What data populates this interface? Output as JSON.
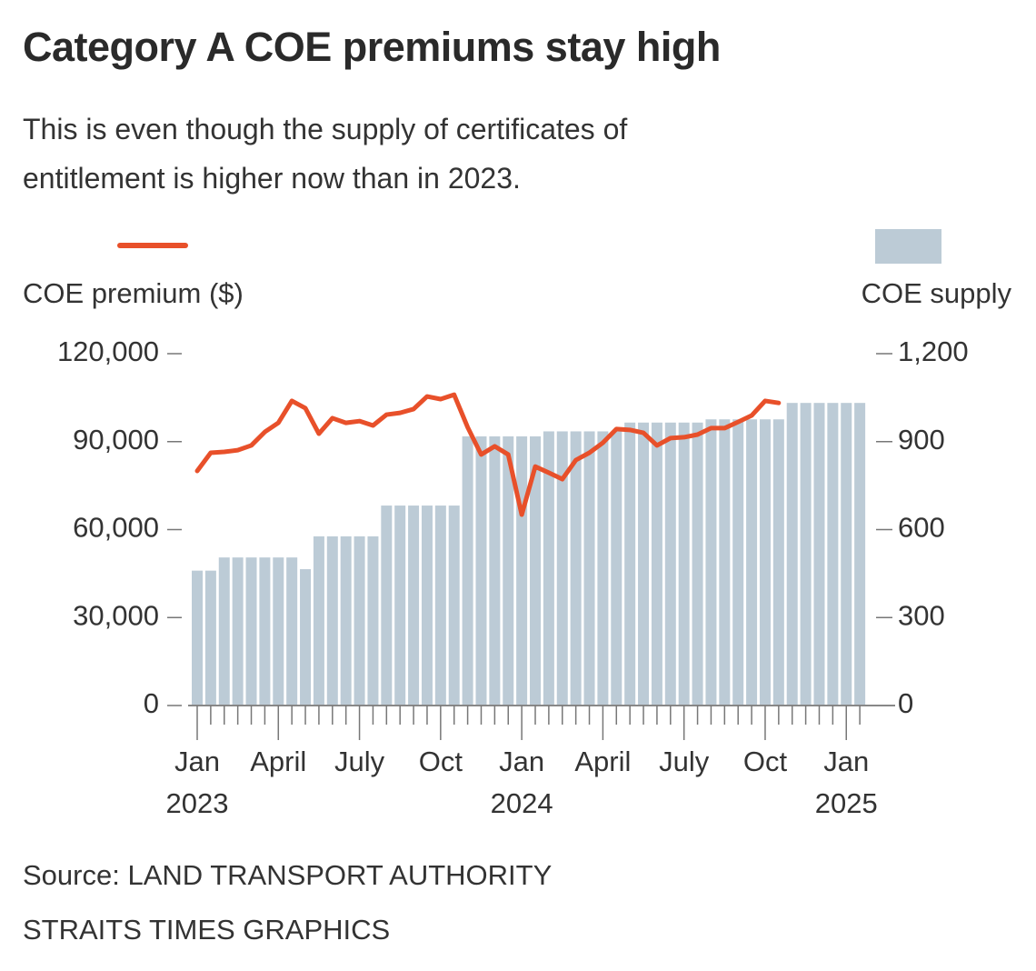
{
  "chart_data": {
    "type": "bar",
    "title": "Category A COE premiums stay high",
    "subtitle": "This is even though the supply of certificates of entitlement is higher now than in 2023.",
    "source": [
      "Source: LAND TRANSPORT AUTHORITY",
      "STRAITS TIMES GRAPHICS"
    ],
    "categories": [
      "Jan 2023",
      null,
      null,
      null,
      null,
      null,
      "April",
      null,
      null,
      null,
      null,
      null,
      "July",
      null,
      null,
      null,
      null,
      null,
      "Oct",
      null,
      null,
      null,
      null,
      null,
      "Jan 2024",
      null,
      null,
      null,
      null,
      null,
      "April",
      null,
      null,
      null,
      null,
      null,
      "July",
      null,
      null,
      null,
      null,
      null,
      "Oct",
      null,
      null,
      null,
      null,
      null,
      "Jan 2025",
      null
    ],
    "series": [
      {
        "name": "COE supply",
        "type": "bar",
        "axis": "y2",
        "color": "#bccbd6",
        "values": [
          460,
          460,
          505,
          505,
          505,
          505,
          505,
          505,
          465,
          577,
          577,
          577,
          577,
          577,
          682,
          682,
          682,
          682,
          682,
          682,
          918,
          918,
          918,
          918,
          918,
          918,
          935,
          935,
          935,
          935,
          935,
          935,
          965,
          965,
          965,
          965,
          965,
          965,
          976,
          976,
          976,
          976,
          976,
          976,
          1032,
          1032,
          1032,
          1032,
          1032,
          1032
        ]
      },
      {
        "name": "COE premium ($)",
        "type": "line",
        "axis": "y",
        "color": "#e8502a",
        "values": [
          80000,
          86200,
          86500,
          87100,
          88700,
          93300,
          96400,
          103900,
          101400,
          92700,
          98000,
          96400,
          97000,
          95500,
          99200,
          99800,
          101100,
          105400,
          104500,
          106000,
          94900,
          85600,
          88400,
          85600,
          65100,
          81500,
          79400,
          77200,
          83700,
          86200,
          89600,
          94300,
          94000,
          93000,
          88700,
          91200,
          91500,
          92400,
          94600,
          94600,
          96700,
          98900,
          103900,
          103200,
          null,
          null,
          null,
          null,
          null,
          null
        ]
      }
    ],
    "ylim": [
      0,
      120000
    ],
    "yticks": [
      0,
      {
        "value": 30000,
        "label": "30,000"
      },
      {
        "value": 60000,
        "label": "60,000"
      },
      {
        "value": 90000,
        "label": "90,000"
      },
      {
        "value": 120000,
        "label": "120,000"
      }
    ],
    "y2lim": [
      0,
      1200
    ],
    "y2ticks": [
      0,
      300,
      600,
      900,
      {
        "value": 1200,
        "label": "1,200"
      }
    ],
    "grid": false
  }
}
